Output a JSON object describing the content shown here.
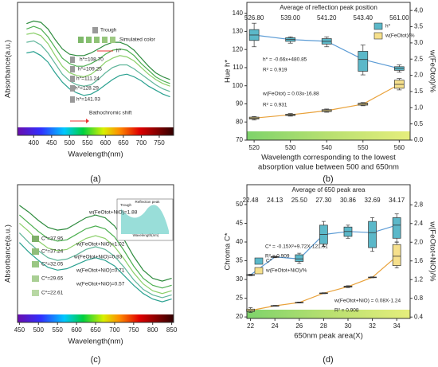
{
  "chart_data": [
    {
      "type": "spectrum",
      "label": "(a)",
      "xlabel": "Wavelength(nm)",
      "ylabel": "Absorbance(a.u.)",
      "xlim": [
        355,
        790
      ],
      "xticks": [
        400,
        450,
        500,
        550,
        600,
        650,
        700,
        750
      ],
      "ylim": [
        0,
        1
      ],
      "x": [
        380,
        400,
        420,
        440,
        460,
        480,
        500,
        520,
        540,
        560,
        580,
        600,
        620,
        640,
        660,
        680,
        700,
        720,
        740,
        760,
        780
      ],
      "series": [
        {
          "color": "#2e8b3e",
          "values": [
            0.84,
            0.86,
            0.85,
            0.8,
            0.72,
            0.65,
            0.61,
            0.6,
            0.6,
            0.62,
            0.65,
            0.68,
            0.7,
            0.7,
            0.68,
            0.64,
            0.58,
            0.52,
            0.47,
            0.44,
            0.42
          ]
        },
        {
          "color": "#4caf50",
          "values": [
            0.8,
            0.82,
            0.8,
            0.74,
            0.66,
            0.58,
            0.54,
            0.52,
            0.52,
            0.54,
            0.57,
            0.61,
            0.64,
            0.65,
            0.64,
            0.6,
            0.54,
            0.49,
            0.44,
            0.41,
            0.39
          ]
        },
        {
          "color": "#8bcf6a",
          "values": [
            0.76,
            0.77,
            0.75,
            0.69,
            0.6,
            0.52,
            0.47,
            0.45,
            0.44,
            0.46,
            0.5,
            0.55,
            0.58,
            0.6,
            0.59,
            0.56,
            0.51,
            0.46,
            0.42,
            0.39,
            0.37
          ]
        },
        {
          "color": "#5fb59a",
          "values": [
            0.7,
            0.71,
            0.68,
            0.62,
            0.54,
            0.46,
            0.41,
            0.38,
            0.37,
            0.38,
            0.42,
            0.47,
            0.51,
            0.53,
            0.53,
            0.5,
            0.46,
            0.42,
            0.38,
            0.35,
            0.33
          ]
        },
        {
          "color": "#2aa190",
          "values": [
            0.62,
            0.63,
            0.6,
            0.55,
            0.47,
            0.4,
            0.35,
            0.32,
            0.3,
            0.31,
            0.34,
            0.38,
            0.42,
            0.45,
            0.46,
            0.44,
            0.41,
            0.37,
            0.34,
            0.31,
            0.29
          ]
        }
      ],
      "annotations": [
        "Trough",
        "Simulated color",
        "h*",
        "h*=108.70",
        "h*=109.25",
        "h*=111.24",
        "h*=128.29",
        "h*=141.03",
        "Bathochromic shift"
      ]
    },
    {
      "type": "box",
      "label": "(b)",
      "top_title": "Average of reflection peak position",
      "top_labels": [
        {
          "value": 526.8,
          "label": "526.80"
        },
        {
          "value": 539,
          "label": "539.00"
        },
        {
          "value": 541.2,
          "label": "541.20"
        },
        {
          "value": 543.4,
          "label": "543.40"
        },
        {
          "value": 561,
          "label": "561.00"
        }
      ],
      "ylabel": "Hue h*",
      "y2label": "w(FeOtot)/%",
      "xlabel": [
        "Wavelength corresponding to the lowest",
        "absorption value between 500 and 650nm"
      ],
      "xlim": [
        518,
        563
      ],
      "xticks": [
        520,
        530,
        540,
        550,
        560
      ],
      "ylim": [
        70,
        146
      ],
      "yticks": [
        70,
        80,
        90,
        100,
        110,
        120,
        130,
        140
      ],
      "y2lim": [
        0,
        4.25
      ],
      "y2ticks": [
        {
          "value": 0,
          "label": "0.0"
        },
        0.5,
        {
          "value": 1,
          "label": "1.0"
        },
        1.5,
        {
          "value": 2,
          "label": "2.0"
        },
        2.5,
        {
          "value": 3,
          "label": "3.0"
        },
        3.5,
        {
          "value": 4,
          "label": "4.0"
        }
      ],
      "series": [
        {
          "name": "h*",
          "color": "#5bb8c9",
          "line_color": "#5b9bd5",
          "x": [
            520,
            530,
            540,
            550,
            560
          ],
          "min": [
            121.5,
            123.5,
            121.5,
            106,
            107.5
          ],
          "q1": [
            125,
            124.5,
            123,
            108,
            108.5
          ],
          "median": [
            128,
            125.5,
            124.5,
            114.5,
            109.5
          ],
          "q3": [
            131,
            126.5,
            126,
            119,
            110.5
          ],
          "max": [
            134.5,
            127,
            127,
            122.5,
            111.5
          ]
        },
        {
          "name": "w(FeOtot)/%",
          "color": "#f6e08c",
          "line_color": "#e9a23b",
          "axis": "y2",
          "x": [
            520,
            530,
            540,
            550,
            560
          ],
          "min": [
            0.62,
            0.74,
            0.86,
            1.06,
            1.55
          ],
          "q1": [
            0.65,
            0.76,
            0.88,
            1.08,
            1.6
          ],
          "median": [
            0.68,
            0.78,
            0.91,
            1.11,
            1.72
          ],
          "q3": [
            0.71,
            0.8,
            0.94,
            1.14,
            1.85
          ],
          "max": [
            0.73,
            0.82,
            0.96,
            1.16,
            1.9
          ]
        }
      ],
      "annotations": [
        "h* = -0.66x+480.85",
        "R² = 0.919",
        "w(FeOtot) = 0.03x-16.88",
        "R² = 0.931"
      ]
    },
    {
      "type": "spectrum",
      "label": "(c)",
      "xlabel": "Wavelength(nm)",
      "ylabel": "Absorbance(a.u.)",
      "xlim": [
        445,
        855
      ],
      "xticks": [
        450,
        500,
        550,
        600,
        650,
        700,
        750,
        800,
        850
      ],
      "ylim": [
        0,
        1
      ],
      "x": [
        450,
        475,
        500,
        525,
        550,
        575,
        600,
        625,
        650,
        675,
        700,
        725,
        750,
        775,
        800,
        825,
        850
      ],
      "series": [
        {
          "color": "#2e8b3e",
          "values": [
            0.85,
            0.8,
            0.74,
            0.69,
            0.67,
            0.68,
            0.72,
            0.76,
            0.78,
            0.76,
            0.7,
            0.6,
            0.48,
            0.38,
            0.32,
            0.3,
            0.32
          ]
        },
        {
          "color": "#4caf50",
          "values": [
            0.78,
            0.72,
            0.66,
            0.61,
            0.59,
            0.6,
            0.64,
            0.68,
            0.7,
            0.68,
            0.62,
            0.52,
            0.41,
            0.32,
            0.27,
            0.25,
            0.27
          ]
        },
        {
          "color": "#8bcf6a",
          "values": [
            0.72,
            0.66,
            0.59,
            0.54,
            0.52,
            0.53,
            0.57,
            0.61,
            0.63,
            0.61,
            0.55,
            0.46,
            0.36,
            0.28,
            0.23,
            0.21,
            0.23
          ]
        },
        {
          "color": "#5fb59a",
          "values": [
            0.65,
            0.58,
            0.52,
            0.47,
            0.45,
            0.46,
            0.49,
            0.53,
            0.55,
            0.53,
            0.48,
            0.4,
            0.31,
            0.24,
            0.2,
            0.18,
            0.2
          ]
        },
        {
          "color": "#2aa190",
          "values": [
            0.58,
            0.51,
            0.45,
            0.4,
            0.38,
            0.39,
            0.42,
            0.45,
            0.47,
            0.45,
            0.41,
            0.34,
            0.27,
            0.21,
            0.17,
            0.15,
            0.17
          ]
        }
      ],
      "annotations": [
        "C*=37.95",
        "C*=37.24",
        "C*=32.05",
        "C*=29.65",
        "C*=22.61",
        "w(FeOtot+NiO)=1.88",
        "w(FeOtot+NiO)=1.02",
        "w(FeOtot+NiO)=0.93",
        "w(FeOtot+NiO)=0.71",
        "w(FeOtot+NiO)=0.57",
        "Trough",
        "Reflection peak",
        "Wavelength(nm)"
      ]
    },
    {
      "type": "box",
      "label": "(d)",
      "top_title": "Average of 650 peak area",
      "top_labels": [
        {
          "value": 22.48,
          "label": "22.48"
        },
        {
          "value": 24.13,
          "label": "24.13"
        },
        {
          "value": 25.5,
          "label": "25.50"
        },
        {
          "value": 27.3,
          "label": "27.30"
        },
        {
          "value": 30.86,
          "label": "30.86"
        },
        {
          "value": 32.69,
          "label": "32.69"
        },
        {
          "value": 34.17,
          "label": "34.17"
        }
      ],
      "ylabel": "Chroma C*",
      "y2label": "w(FeOtot+NiO)/%",
      "xlabel": [
        "650nm peak area(X)"
      ],
      "xlim": [
        21.7,
        35.1
      ],
      "xticks": [
        22,
        24,
        26,
        28,
        30,
        32,
        34
      ],
      "ylim": [
        19.6,
        55.3
      ],
      "yticks": [
        20,
        25,
        30,
        35,
        40,
        45,
        50
      ],
      "y2lim": [
        0.37,
        3.23
      ],
      "y2ticks": [
        0.4,
        0.8,
        1.2,
        1.6,
        {
          "value": 2,
          "label": "2.0"
        },
        2.4,
        2.8
      ],
      "series": [
        {
          "name": "C*",
          "color": "#5bb8c9",
          "line_color": "#5b9bd5",
          "x": [
            22,
            24,
            26,
            28,
            30,
            32,
            34
          ],
          "min": [
            31,
            35.8,
            34.3,
            38.8,
            41,
            37.5,
            40
          ],
          "q1": [
            31.1,
            35.9,
            34.8,
            39.5,
            41.5,
            38.5,
            41
          ],
          "median": [
            31.2,
            36,
            35.5,
            42,
            42.8,
            42.5,
            44.5
          ],
          "q3": [
            31.3,
            36.1,
            36.6,
            44.5,
            44,
            45.5,
            46.5
          ],
          "max": [
            31.4,
            36.2,
            37,
            45.5,
            44.5,
            46.5,
            47.5
          ]
        },
        {
          "name": "w(FeOtot+NiO)/%",
          "color": "#f6e08c",
          "line_color": "#e9a23b",
          "axis": "y2",
          "x": [
            22,
            24,
            26,
            28,
            30,
            32,
            34
          ],
          "min": [
            0.5,
            0.63,
            0.7,
            0.9,
            1.03,
            1.24,
            1.45
          ],
          "q1": [
            0.52,
            0.635,
            0.705,
            0.905,
            1.04,
            1.245,
            1.5
          ],
          "median": [
            0.54,
            0.64,
            0.71,
            0.91,
            1.05,
            1.25,
            1.7
          ],
          "q3": [
            0.57,
            0.645,
            0.715,
            0.915,
            1.06,
            1.255,
            1.95
          ],
          "max": [
            0.6,
            0.65,
            0.72,
            0.92,
            1.07,
            1.26,
            2.0
          ]
        }
      ],
      "annotations": [
        "C* = -0.15X²+9.72X-121.51",
        "R² = 0.909",
        "w(FeOtot+NiO) = 0.08X-1.24",
        "R² = 0.908"
      ]
    }
  ]
}
